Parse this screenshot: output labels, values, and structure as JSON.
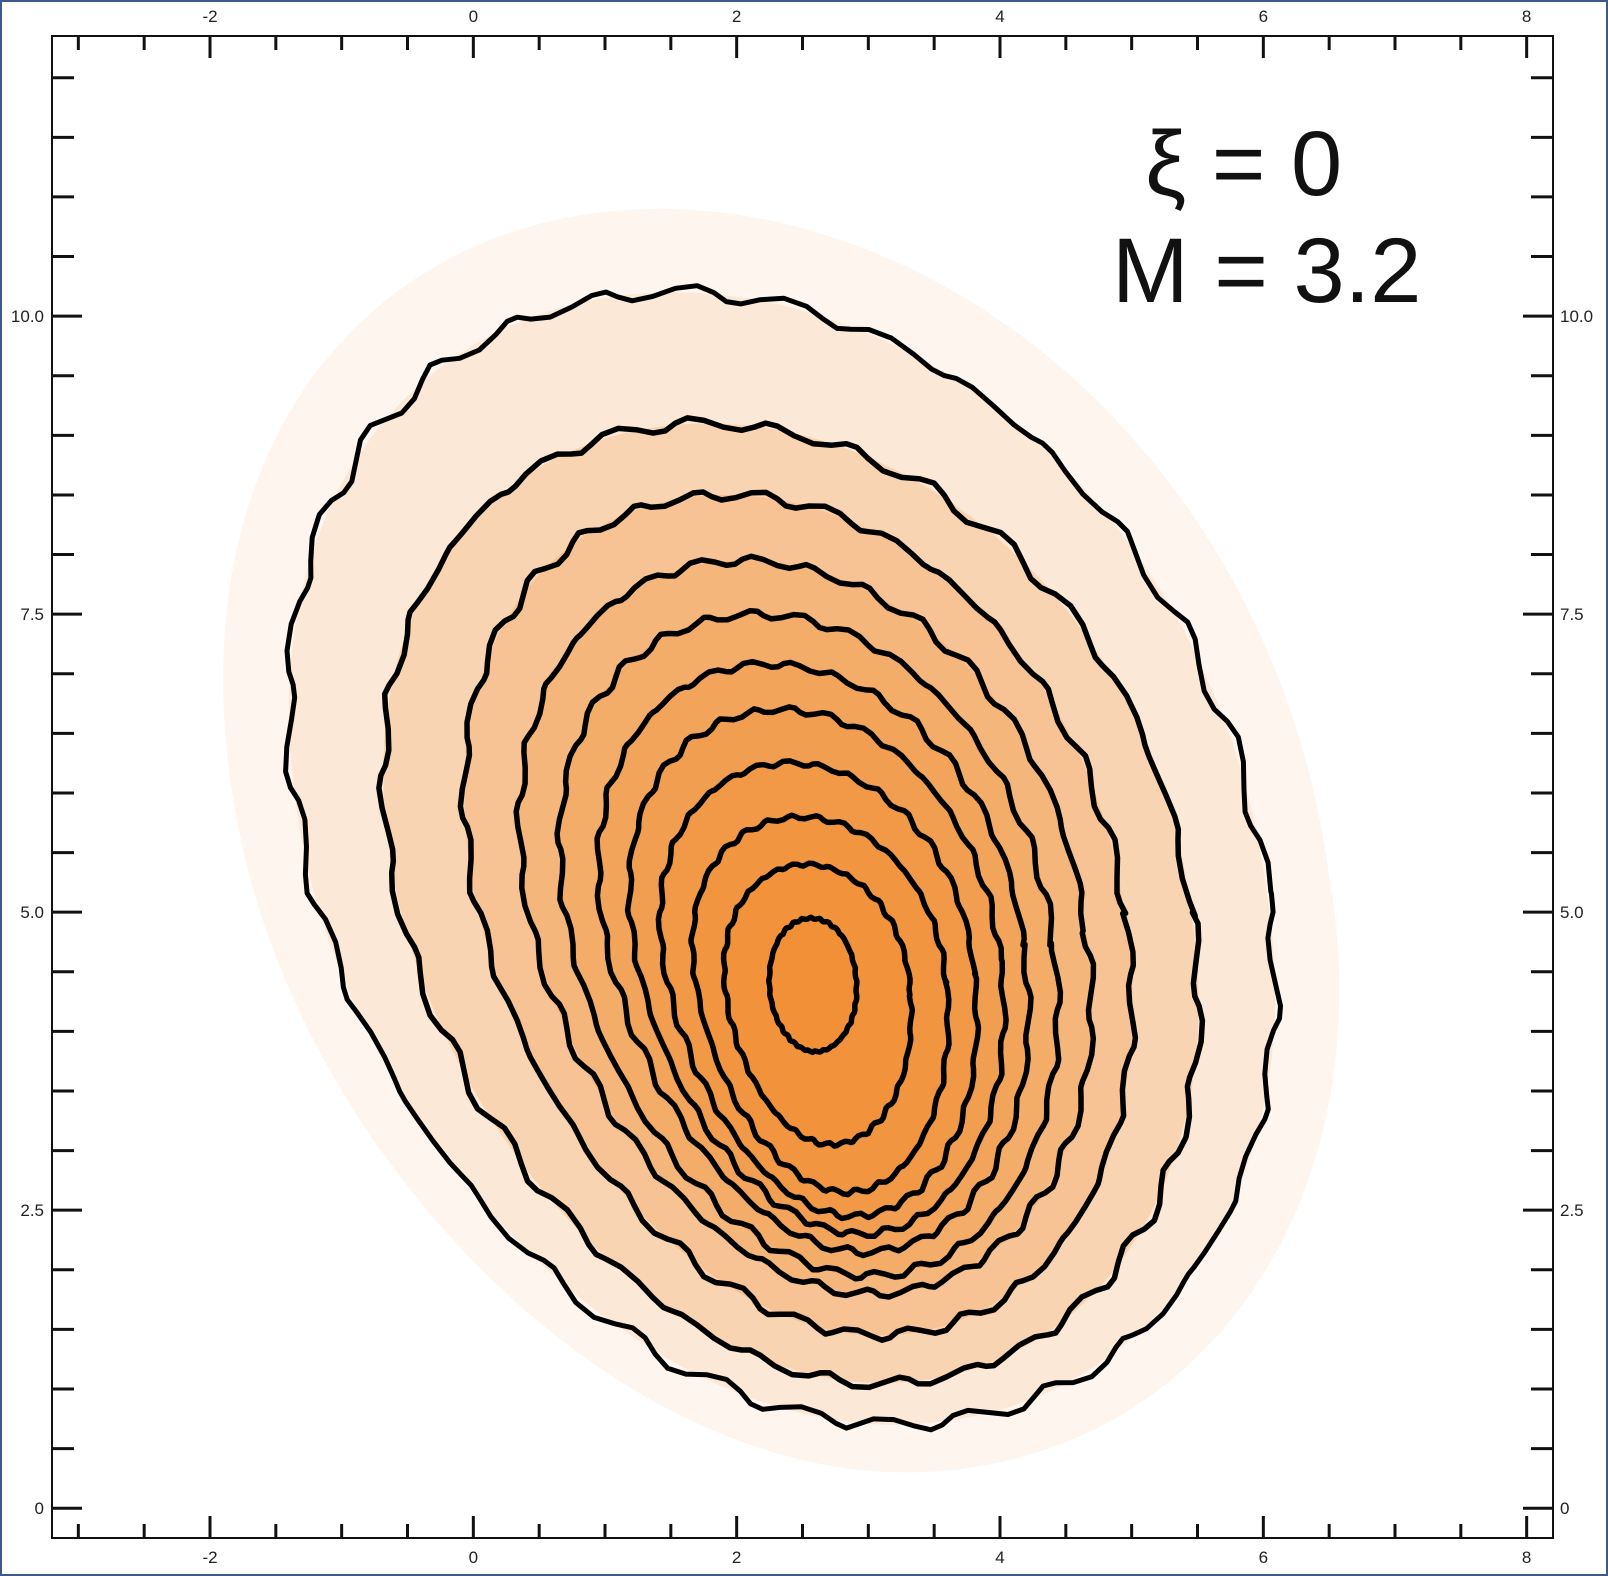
{
  "chart_data": {
    "type": "heatmap",
    "subtype": "filled density with contour lines",
    "xlim": [
      -3.2,
      8.2
    ],
    "ylim": [
      -0.25,
      12.35
    ],
    "x_ticks": [
      "-2",
      "0",
      "2",
      "4",
      "6",
      "8"
    ],
    "y_ticks": [
      "0",
      "2.5",
      "5.0",
      "7.5",
      "10.0"
    ],
    "x_tick_values": [
      -2,
      0,
      2,
      4,
      6,
      8
    ],
    "y_tick_values": [
      0,
      2.5,
      5.0,
      7.5,
      10.0
    ],
    "x_minor_step": 0.5,
    "y_minor_step": 0.5,
    "annotation_xi": "ξ = 0",
    "annotation_m": "M = 3.2",
    "colormap": [
      "#ffffff",
      "#f08a2a"
    ],
    "line_color": "#000000",
    "grid": false,
    "peak": {
      "x": 2.6,
      "y": 4.25
    },
    "contours": [
      {
        "level": 1,
        "cx": 2.4,
        "cy": 5.2,
        "rx": 3.62,
        "ry_top": 5.0,
        "ry_bottom": 4.5,
        "skew": -0.32
      },
      {
        "level": 2,
        "cx": 2.45,
        "cy": 5.0,
        "rx": 3.0,
        "ry_top": 4.1,
        "ry_bottom": 3.95,
        "skew": -0.3
      },
      {
        "level": 3,
        "cx": 2.5,
        "cy": 4.95,
        "rx": 2.45,
        "ry_top": 3.55,
        "ry_bottom": 3.5,
        "skew": -0.3
      },
      {
        "level": 4,
        "cx": 2.55,
        "cy": 4.85,
        "rx": 2.1,
        "ry_top": 3.1,
        "ry_bottom": 3.05,
        "skew": -0.29
      },
      {
        "level": 5,
        "cx": 2.57,
        "cy": 4.75,
        "rx": 1.83,
        "ry_top": 2.75,
        "ry_bottom": 2.8,
        "skew": -0.28
      },
      {
        "level": 6,
        "cx": 2.6,
        "cy": 4.7,
        "rx": 1.58,
        "ry_top": 2.38,
        "ry_bottom": 2.55,
        "skew": -0.27
      },
      {
        "level": 7,
        "cx": 2.62,
        "cy": 4.6,
        "rx": 1.38,
        "ry_top": 2.1,
        "ry_bottom": 2.3,
        "skew": -0.25
      },
      {
        "level": 8,
        "cx": 2.63,
        "cy": 4.5,
        "rx": 1.17,
        "ry_top": 1.75,
        "ry_bottom": 2.05,
        "skew": -0.23
      },
      {
        "level": 9,
        "cx": 2.64,
        "cy": 4.4,
        "rx": 0.95,
        "ry_top": 1.4,
        "ry_bottom": 1.75,
        "skew": -0.2
      },
      {
        "level": 10,
        "cx": 2.62,
        "cy": 4.3,
        "rx": 0.7,
        "ry_top": 1.1,
        "ry_bottom": 1.25,
        "skew": -0.15
      },
      {
        "level": 11,
        "cx": 2.58,
        "cy": 4.35,
        "rx": 0.33,
        "ry_top": 0.6,
        "ry_bottom": 0.52,
        "skew": -0.05
      }
    ]
  }
}
